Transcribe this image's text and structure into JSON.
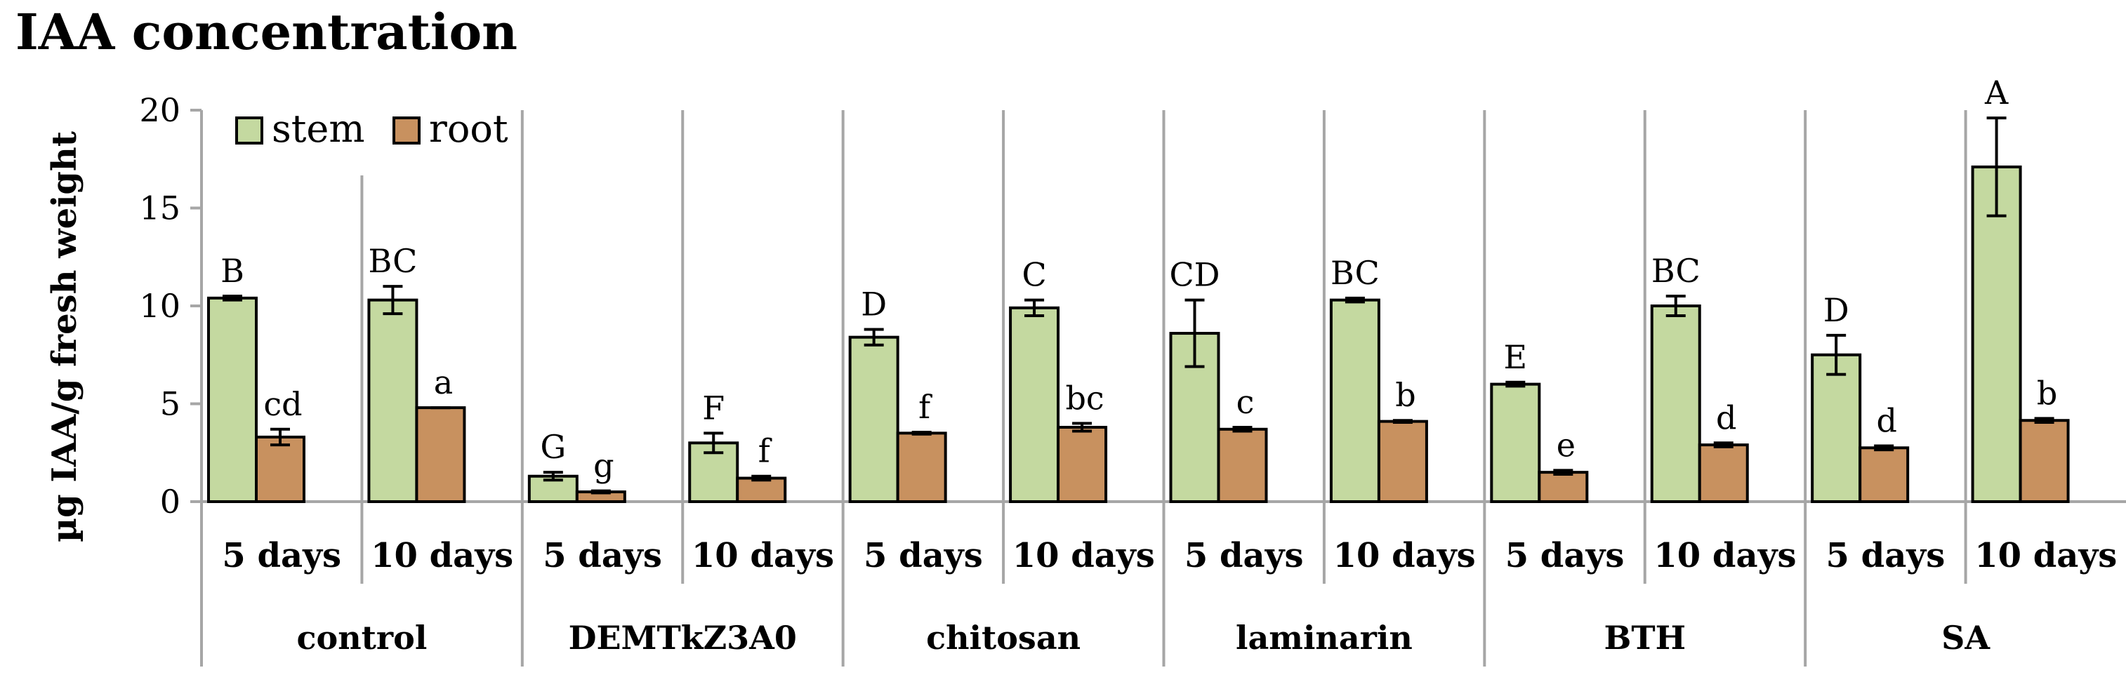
{
  "chart_data": {
    "type": "bar",
    "title": "IAA concentration",
    "ylabel": "µg IAA/g fresh weight",
    "xlabel": "",
    "ylim": [
      0,
      20
    ],
    "yticks": [
      0,
      5,
      10,
      15,
      20
    ],
    "grid": false,
    "legend_placement": "top-left",
    "groups": [
      "control",
      "DEMTkZ3A0",
      "chitosan",
      "laminarin",
      "BTH",
      "SA"
    ],
    "categories": [
      "5 days",
      "10 days",
      "5 days",
      "10 days",
      "5 days",
      "10 days",
      "5 days",
      "10 days",
      "5 days",
      "10 days",
      "5 days",
      "10 days"
    ],
    "series": [
      {
        "name": "stem",
        "color": "#c4d9a0",
        "values": [
          10.4,
          10.3,
          1.3,
          3.0,
          8.4,
          9.9,
          8.6,
          10.3,
          6.0,
          10.0,
          7.5,
          17.1
        ],
        "errors": [
          0.1,
          0.7,
          0.2,
          0.5,
          0.4,
          0.4,
          1.7,
          0.1,
          0.1,
          0.5,
          1.0,
          2.5
        ],
        "labels": [
          "B",
          "BC",
          "G",
          "F",
          "D",
          "C",
          "CD",
          "BC",
          "E",
          "BC",
          "D",
          "A"
        ]
      },
      {
        "name": "root",
        "color": "#c8915f",
        "values": [
          3.3,
          4.8,
          0.5,
          1.2,
          3.5,
          3.8,
          3.7,
          4.1,
          1.5,
          2.9,
          2.75,
          4.15
        ],
        "errors": [
          0.4,
          0.0,
          0.05,
          0.1,
          0.05,
          0.2,
          0.1,
          0.05,
          0.1,
          0.1,
          0.1,
          0.1
        ],
        "labels": [
          "cd",
          "a",
          "g",
          "f",
          "f",
          "bc",
          "c",
          "b",
          "e",
          "d",
          "d",
          "b"
        ]
      }
    ]
  }
}
